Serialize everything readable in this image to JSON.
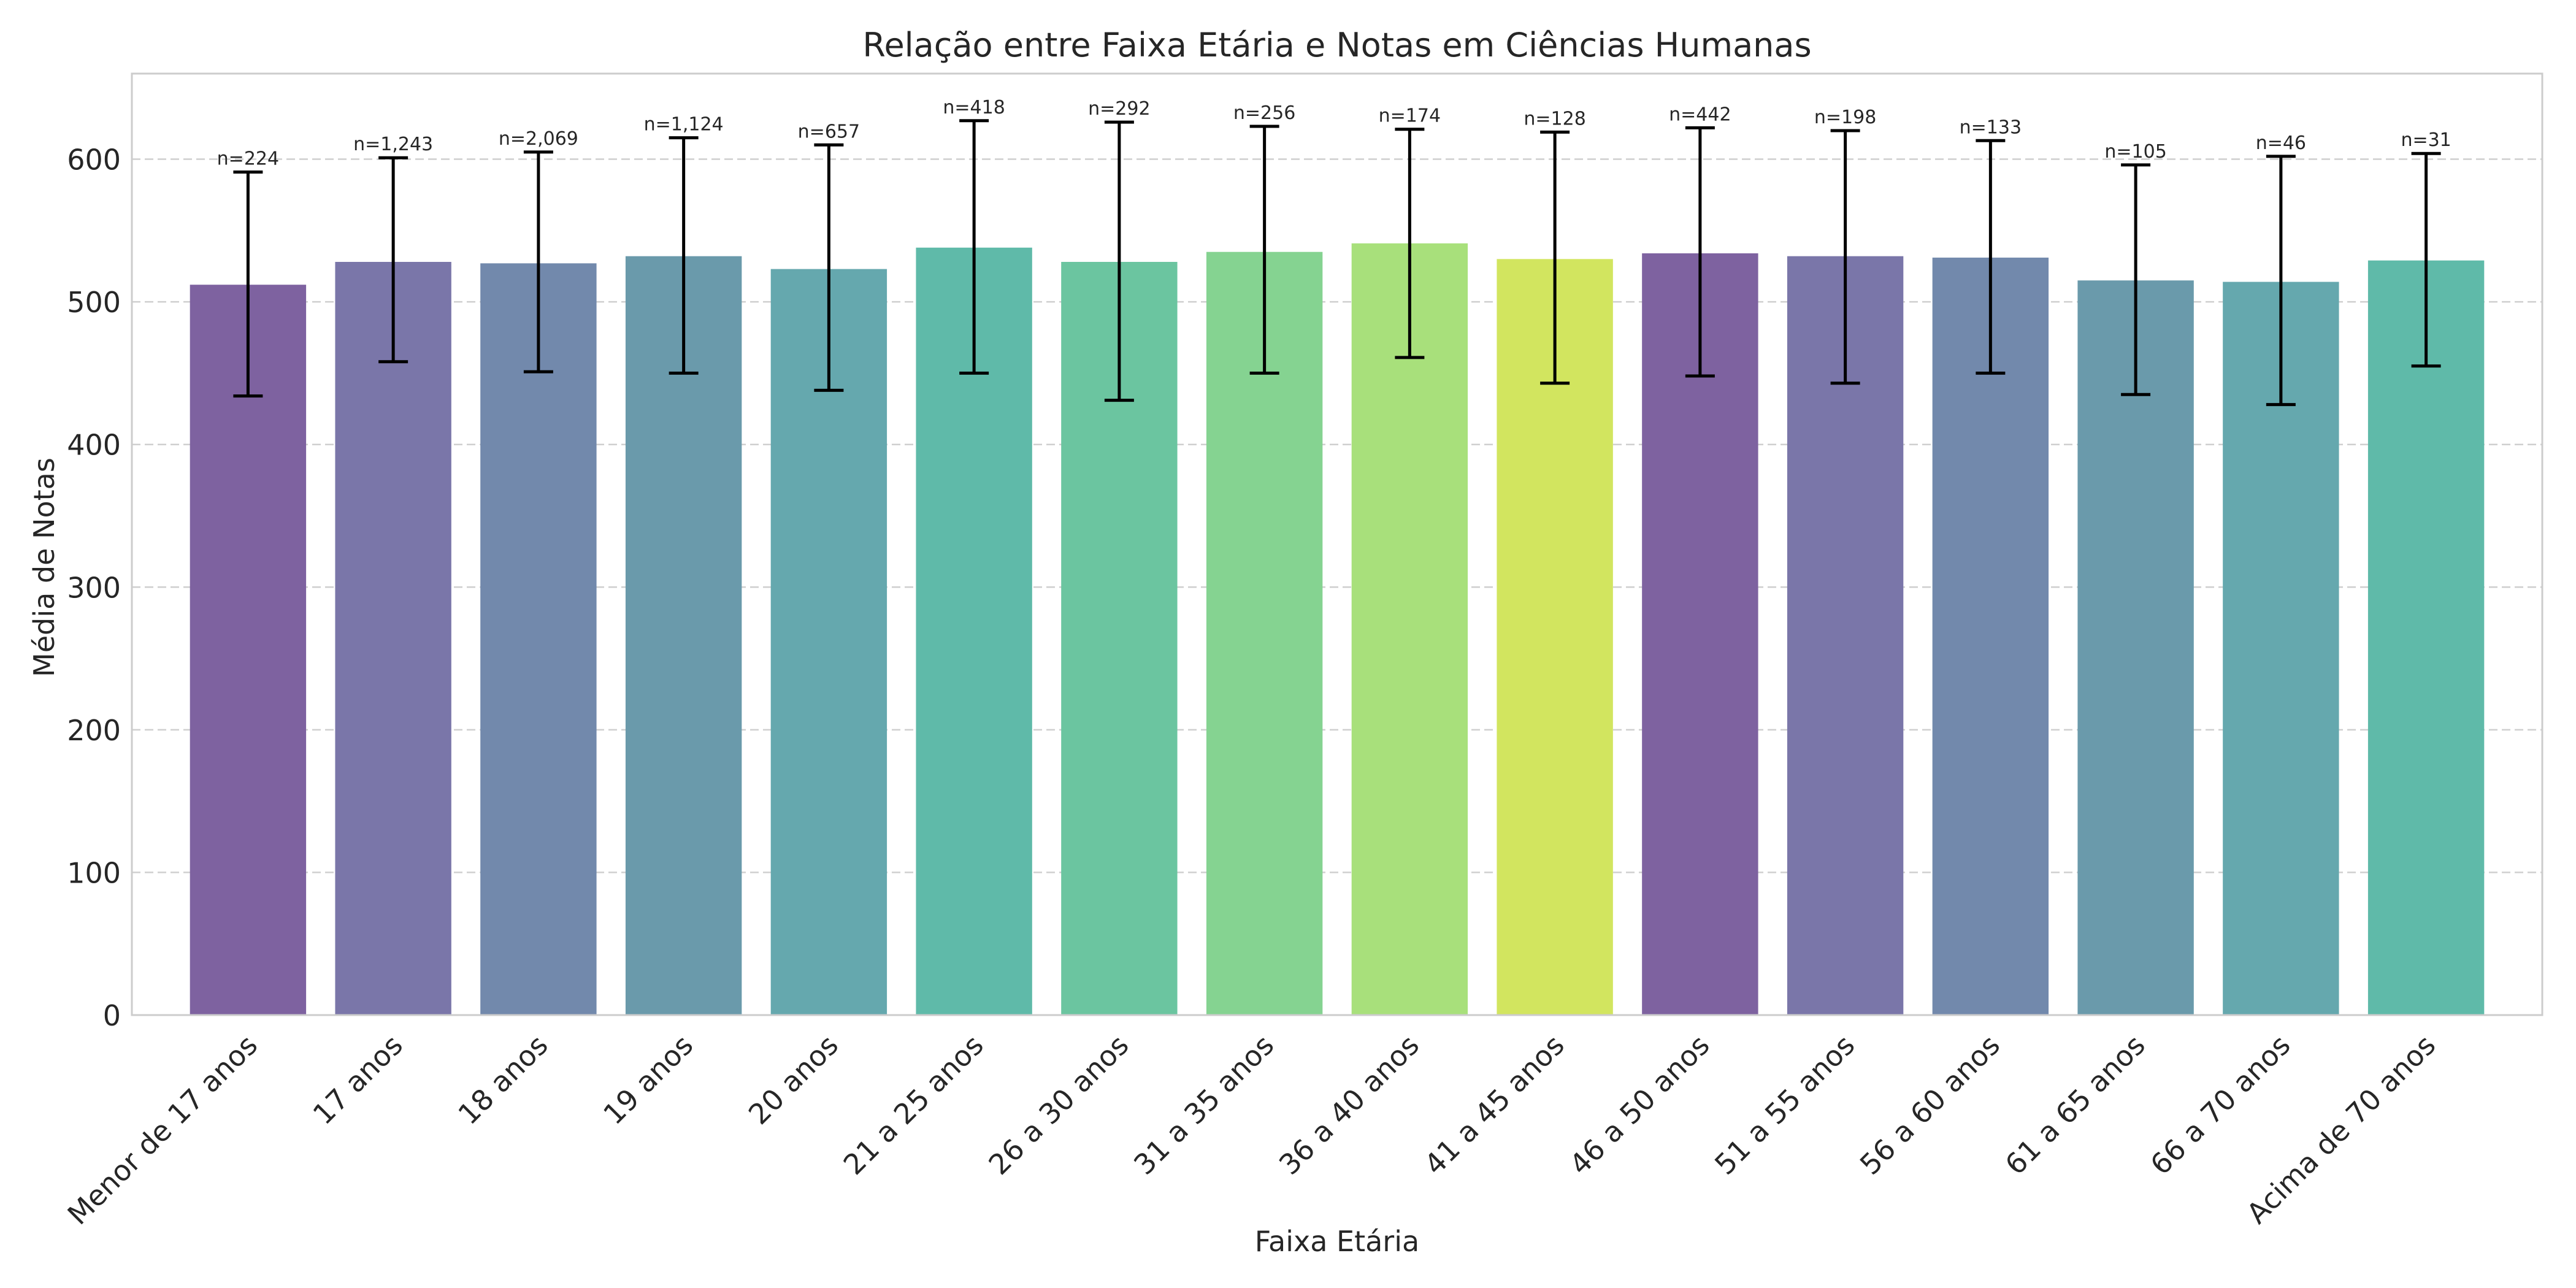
{
  "chart_data": {
    "type": "bar",
    "title": "Relação entre Faixa Etária e Notas em Ciências Humanas",
    "xlabel": "Faixa Etária",
    "ylabel": "Média de Notas",
    "ylim": [
      0,
      660
    ],
    "yticks": [
      0,
      100,
      200,
      300,
      400,
      500,
      600
    ],
    "grid": "y-dashed",
    "categories": [
      "Menor de 17 anos",
      "17 anos",
      "18 anos",
      "19 anos",
      "20 anos",
      "21 a 25 anos",
      "26 a 30 anos",
      "31 a 35 anos",
      "36 a 40 anos",
      "41 a 45 anos",
      "46 a 50 anos",
      "51 a 55 anos",
      "56 a 60 anos",
      "61 a 65 anos",
      "66 a 70 anos",
      "Acima de 70 anos"
    ],
    "values": [
      512,
      528,
      527,
      532,
      523,
      538,
      528,
      535,
      541,
      530,
      534,
      532,
      531,
      515,
      514,
      529
    ],
    "error_lower": [
      434,
      458,
      451,
      450,
      438,
      450,
      431,
      450,
      461,
      443,
      448,
      443,
      450,
      435,
      428,
      455
    ],
    "error_upper": [
      591,
      601,
      605,
      615,
      610,
      627,
      626,
      623,
      621,
      619,
      622,
      620,
      613,
      596,
      602,
      604
    ],
    "counts": [
      "n=224",
      "n=1,243",
      "n=2,069",
      "n=1,124",
      "n=657",
      "n=418",
      "n=292",
      "n=256",
      "n=174",
      "n=128",
      "n=442",
      "n=198",
      "n=133",
      "n=105",
      "n=46",
      "n=31"
    ],
    "colors": [
      "#7e62a0",
      "#7a76a9",
      "#7289ac",
      "#6a9aab",
      "#65a8ae",
      "#5fbaa9",
      "#6bc5a0",
      "#85d391",
      "#a8e07b",
      "#d2e55f",
      "#7e62a0",
      "#7a76a9",
      "#7289ac",
      "#6a9aab",
      "#65a8ae",
      "#5fbaa9"
    ]
  }
}
